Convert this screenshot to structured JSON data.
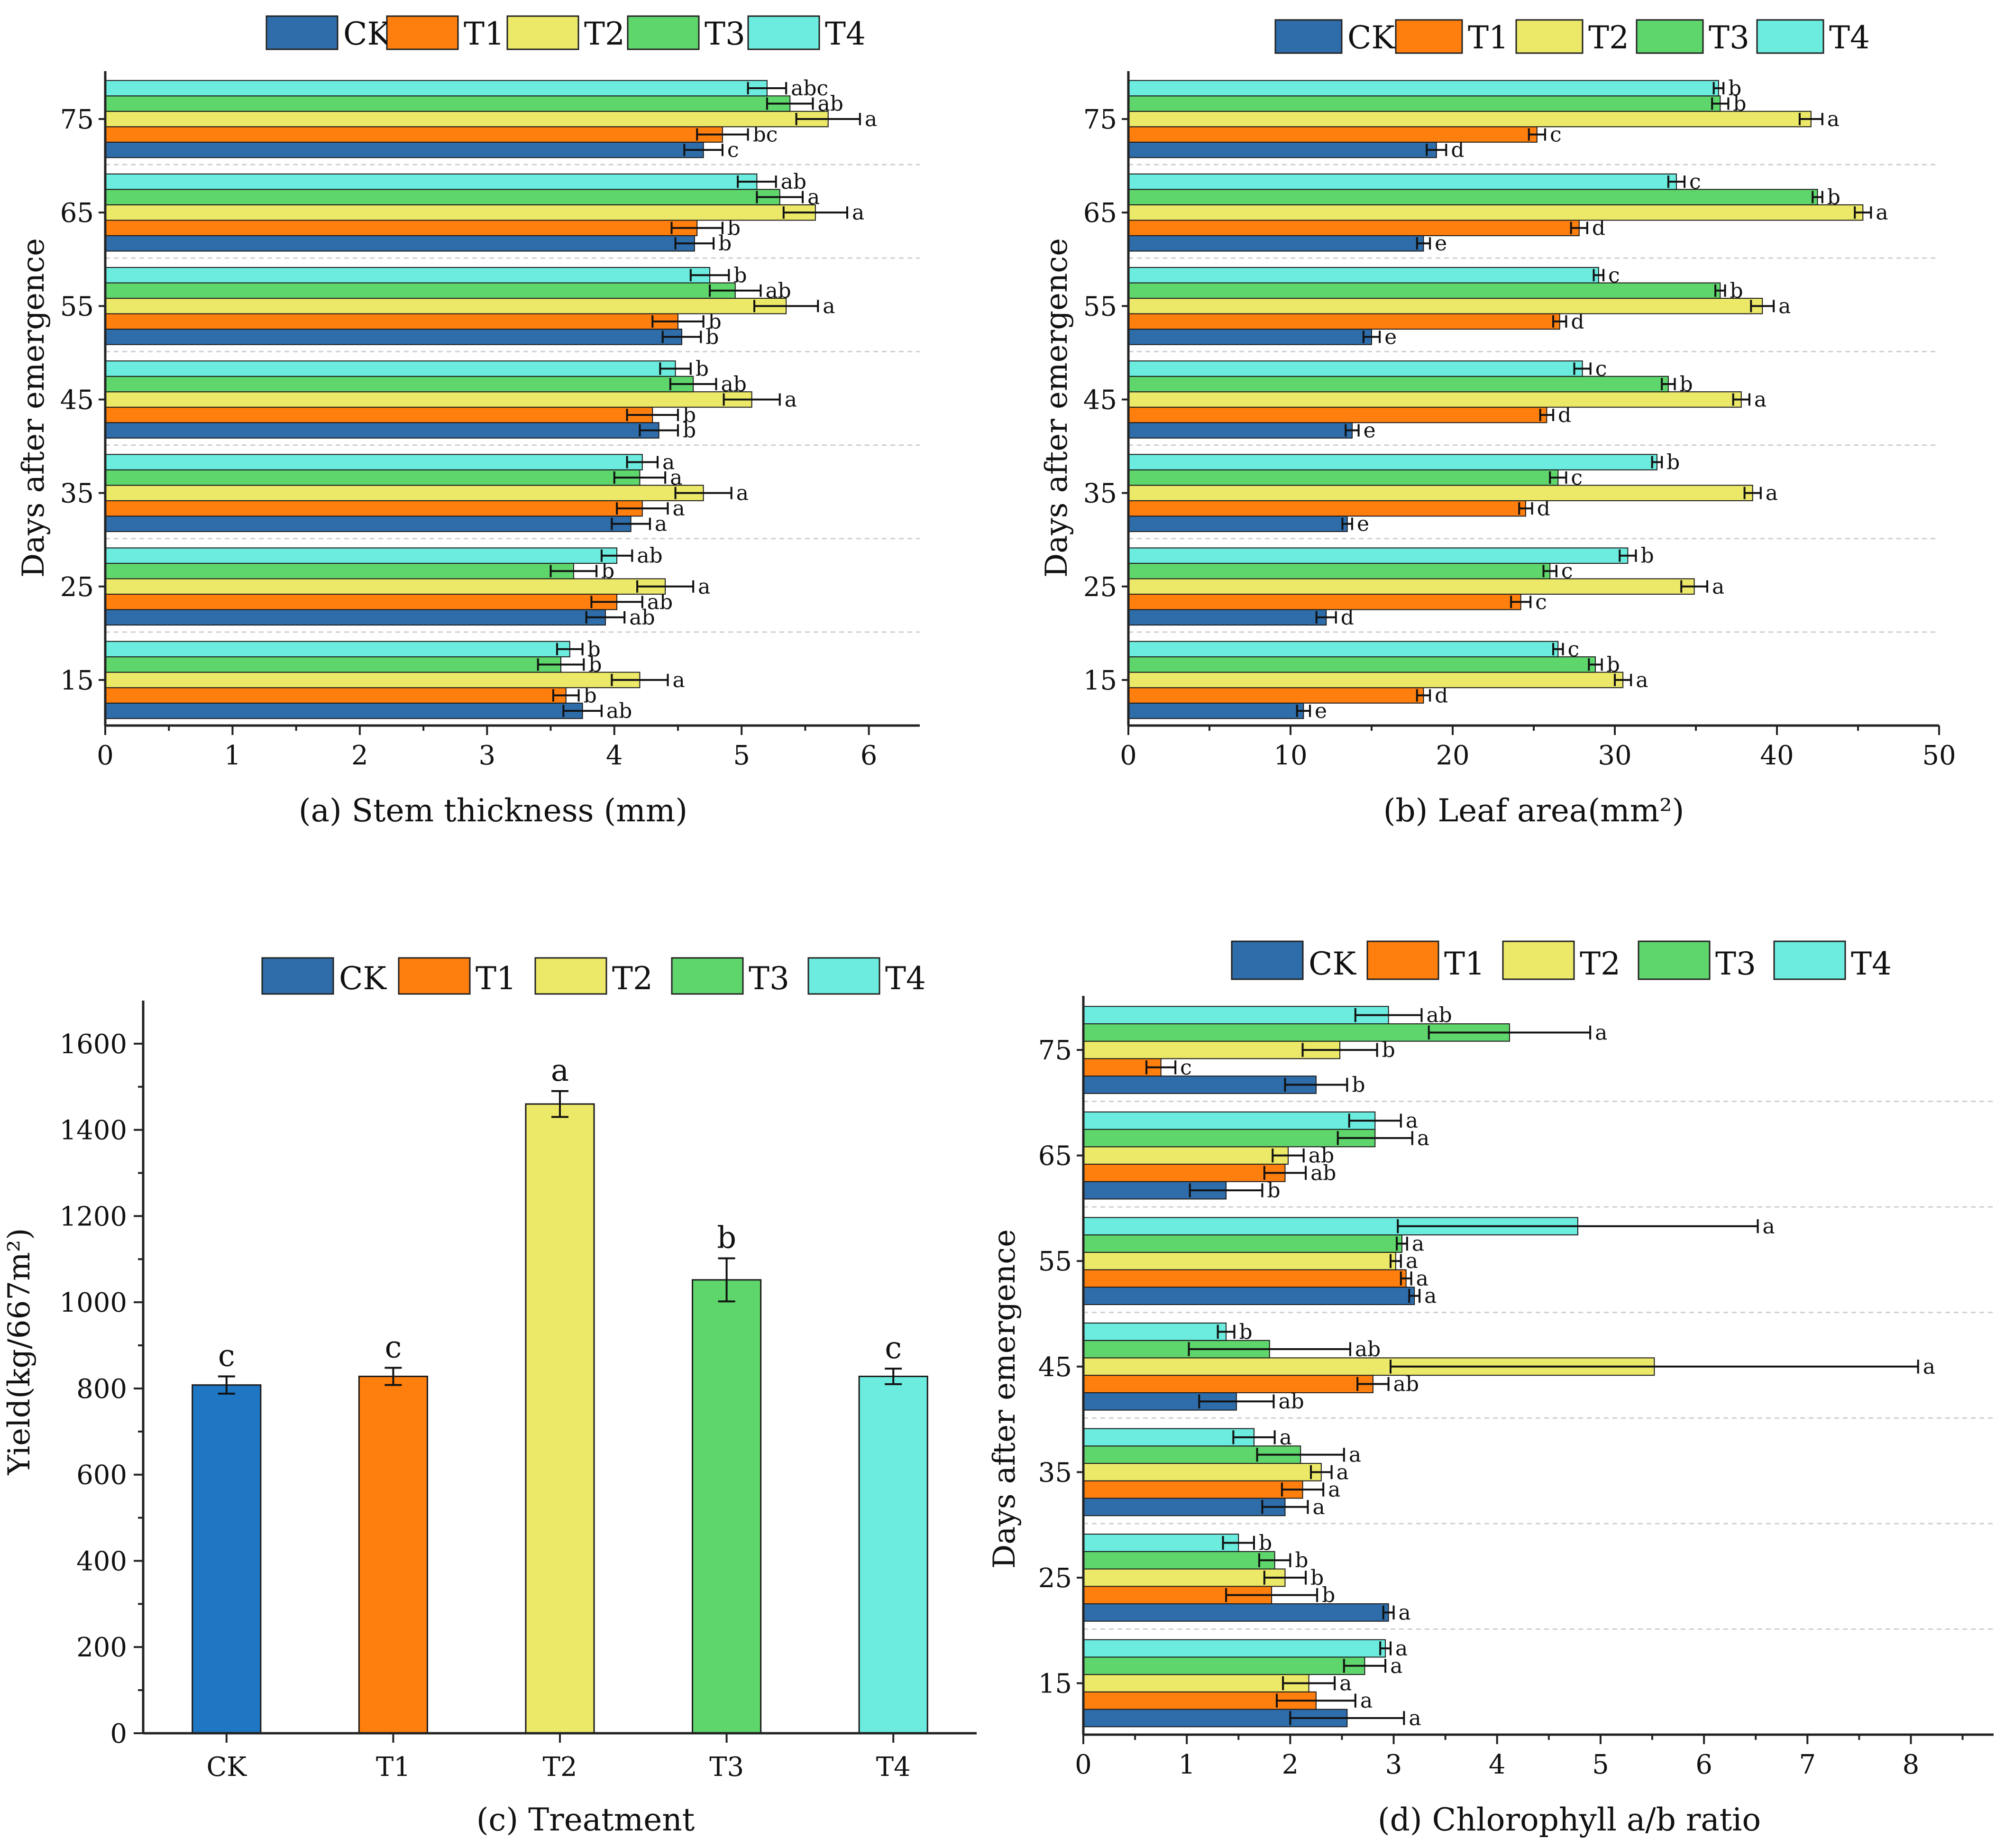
{
  "colors": {
    "CK": "#2E6DAA",
    "T1": "#FF7F0E",
    "T2": "#ECE868",
    "T3": "#5FD66C",
    "T4": "#6CECDF",
    "CK_bar_c": "#1F77C4"
  },
  "chart_data": [
    {
      "id": "a",
      "type": "bar",
      "orientation": "horizontal",
      "caption": "(a) Stem thickness (mm)",
      "ylabel": "Days after emergence",
      "legend": [
        "CK",
        "T1",
        "T2",
        "T3",
        "T4"
      ],
      "categories": [
        "15",
        "25",
        "35",
        "45",
        "55",
        "65",
        "75"
      ],
      "xlim": [
        0,
        6.4
      ],
      "xticks": [
        "0",
        "1",
        "2",
        "3",
        "4",
        "5",
        "6"
      ],
      "series": [
        {
          "name": "CK",
          "values": [
            3.75,
            3.93,
            4.13,
            4.35,
            4.53,
            4.63,
            4.7
          ],
          "errors": [
            0.15,
            0.15,
            0.15,
            0.15,
            0.15,
            0.15,
            0.15
          ],
          "labels": [
            "ab",
            "ab",
            "a",
            "b",
            "b",
            "b",
            "c"
          ]
        },
        {
          "name": "T1",
          "values": [
            3.62,
            4.02,
            4.22,
            4.3,
            4.5,
            4.65,
            4.85
          ],
          "errors": [
            0.1,
            0.2,
            0.2,
            0.2,
            0.2,
            0.2,
            0.2
          ],
          "labels": [
            "b",
            "ab",
            "a",
            "b",
            "b",
            "b",
            "bc"
          ]
        },
        {
          "name": "T2",
          "values": [
            4.2,
            4.4,
            4.7,
            5.08,
            5.35,
            5.58,
            5.68
          ],
          "errors": [
            0.22,
            0.22,
            0.22,
            0.22,
            0.25,
            0.25,
            0.25
          ],
          "labels": [
            "a",
            "a",
            "a",
            "a",
            "a",
            "a",
            "a"
          ]
        },
        {
          "name": "T3",
          "values": [
            3.58,
            3.68,
            4.2,
            4.62,
            4.95,
            5.3,
            5.38
          ],
          "errors": [
            0.18,
            0.18,
            0.2,
            0.18,
            0.2,
            0.18,
            0.18
          ],
          "labels": [
            "b",
            "b",
            "a",
            "ab",
            "ab",
            "a",
            "ab"
          ]
        },
        {
          "name": "T4",
          "values": [
            3.65,
            4.02,
            4.22,
            4.48,
            4.75,
            5.12,
            5.2
          ],
          "errors": [
            0.1,
            0.12,
            0.12,
            0.12,
            0.15,
            0.15,
            0.15
          ],
          "labels": [
            "b",
            "ab",
            "a",
            "b",
            "b",
            "ab",
            "abc"
          ]
        }
      ]
    },
    {
      "id": "b",
      "type": "bar",
      "orientation": "horizontal",
      "caption": "(b) Leaf area(mm²)",
      "ylabel": "Days after emergence",
      "legend": [
        "CK",
        "T1",
        "T2",
        "T3",
        "T4"
      ],
      "categories": [
        "15",
        "25",
        "35",
        "45",
        "55",
        "65",
        "75"
      ],
      "xlim": [
        0,
        50
      ],
      "xticks": [
        "0",
        "10",
        "20",
        "30",
        "40",
        "50"
      ],
      "series": [
        {
          "name": "CK",
          "values": [
            10.8,
            12.2,
            13.5,
            13.8,
            15.0,
            18.2,
            19.0
          ],
          "errors": [
            0.4,
            0.6,
            0.3,
            0.4,
            0.5,
            0.4,
            0.6
          ],
          "labels": [
            "e",
            "d",
            "e",
            "e",
            "e",
            "e",
            "d"
          ]
        },
        {
          "name": "T1",
          "values": [
            18.2,
            24.2,
            24.5,
            25.8,
            26.6,
            27.8,
            25.2
          ],
          "errors": [
            0.4,
            0.6,
            0.4,
            0.4,
            0.4,
            0.5,
            0.5
          ],
          "labels": [
            "d",
            "c",
            "d",
            "d",
            "d",
            "d",
            "c"
          ]
        },
        {
          "name": "T2",
          "values": [
            30.5,
            34.9,
            38.5,
            37.8,
            39.1,
            45.3,
            42.1
          ],
          "errors": [
            0.5,
            0.8,
            0.5,
            0.5,
            0.7,
            0.5,
            0.7
          ],
          "labels": [
            "a",
            "a",
            "a",
            "a",
            "a",
            "a",
            "a"
          ]
        },
        {
          "name": "T3",
          "values": [
            28.8,
            26.0,
            26.5,
            33.3,
            36.5,
            42.5,
            36.5
          ],
          "errors": [
            0.4,
            0.4,
            0.5,
            0.4,
            0.3,
            0.3,
            0.5
          ],
          "labels": [
            "b",
            "c",
            "c",
            "b",
            "b",
            "b",
            "b"
          ]
        },
        {
          "name": "T4",
          "values": [
            26.5,
            30.8,
            32.6,
            28.0,
            29.0,
            33.8,
            36.4
          ],
          "errors": [
            0.3,
            0.5,
            0.3,
            0.5,
            0.3,
            0.5,
            0.3
          ],
          "labels": [
            "c",
            "b",
            "b",
            "c",
            "c",
            "c",
            "b"
          ]
        }
      ]
    },
    {
      "id": "c",
      "type": "bar",
      "orientation": "vertical",
      "caption": "(c) Treatment",
      "ylabel": "Yield(kg/667m²)",
      "legend": [
        "CK",
        "T1",
        "T2",
        "T3",
        "T4"
      ],
      "categories": [
        "CK",
        "T1",
        "T2",
        "T3",
        "T4"
      ],
      "values": [
        808,
        828,
        1460,
        1052,
        828
      ],
      "errors": [
        20,
        20,
        30,
        50,
        18
      ],
      "labels": [
        "c",
        "c",
        "a",
        "b",
        "c"
      ],
      "ylim": [
        0,
        1700
      ],
      "yticks": [
        "0",
        "200",
        "400",
        "600",
        "800",
        "1000",
        "1200",
        "1400",
        "1600"
      ]
    },
    {
      "id": "d",
      "type": "bar",
      "orientation": "horizontal",
      "caption": "(d) Chlorophyll a/b ratio",
      "ylabel": "Days after emergence",
      "legend": [
        "CK",
        "T1",
        "T2",
        "T3",
        "T4"
      ],
      "categories": [
        "15",
        "25",
        "35",
        "45",
        "55",
        "65",
        "75"
      ],
      "xlim": [
        0,
        8.8
      ],
      "xticks": [
        "0",
        "1",
        "2",
        "3",
        "4",
        "5",
        "6",
        "7",
        "8"
      ],
      "series": [
        {
          "name": "CK",
          "values": [
            2.55,
            2.95,
            1.95,
            1.48,
            3.2,
            1.38,
            2.25
          ],
          "errors": [
            0.55,
            0.05,
            0.22,
            0.36,
            0.05,
            0.35,
            0.3
          ],
          "labels": [
            "a",
            "a",
            "a",
            "ab",
            "a",
            "b",
            "b"
          ]
        },
        {
          "name": "T1",
          "values": [
            2.25,
            1.82,
            2.12,
            2.8,
            3.12,
            1.95,
            0.75
          ],
          "errors": [
            0.38,
            0.44,
            0.2,
            0.15,
            0.05,
            0.2,
            0.14
          ],
          "labels": [
            "a",
            "b",
            "a",
            "ab",
            "a",
            "ab",
            "c"
          ]
        },
        {
          "name": "T2",
          "values": [
            2.18,
            1.95,
            2.3,
            5.52,
            3.02,
            1.98,
            2.48
          ],
          "errors": [
            0.25,
            0.2,
            0.1,
            2.55,
            0.05,
            0.15,
            0.36
          ],
          "labels": [
            "a",
            "b",
            "a",
            "a",
            "a",
            "ab",
            "b"
          ]
        },
        {
          "name": "T3",
          "values": [
            2.72,
            1.85,
            2.1,
            1.8,
            3.08,
            2.82,
            4.12
          ],
          "errors": [
            0.2,
            0.15,
            0.42,
            0.78,
            0.05,
            0.36,
            0.78
          ],
          "labels": [
            "a",
            "b",
            "a",
            "ab",
            "a",
            "a",
            "a"
          ]
        },
        {
          "name": "T4",
          "values": [
            2.92,
            1.5,
            1.65,
            1.38,
            4.78,
            2.82,
            2.95
          ],
          "errors": [
            0.05,
            0.15,
            0.2,
            0.08,
            1.74,
            0.25,
            0.32
          ],
          "labels": [
            "a",
            "b",
            "a",
            "b",
            "a",
            "a",
            "ab"
          ]
        }
      ]
    }
  ]
}
